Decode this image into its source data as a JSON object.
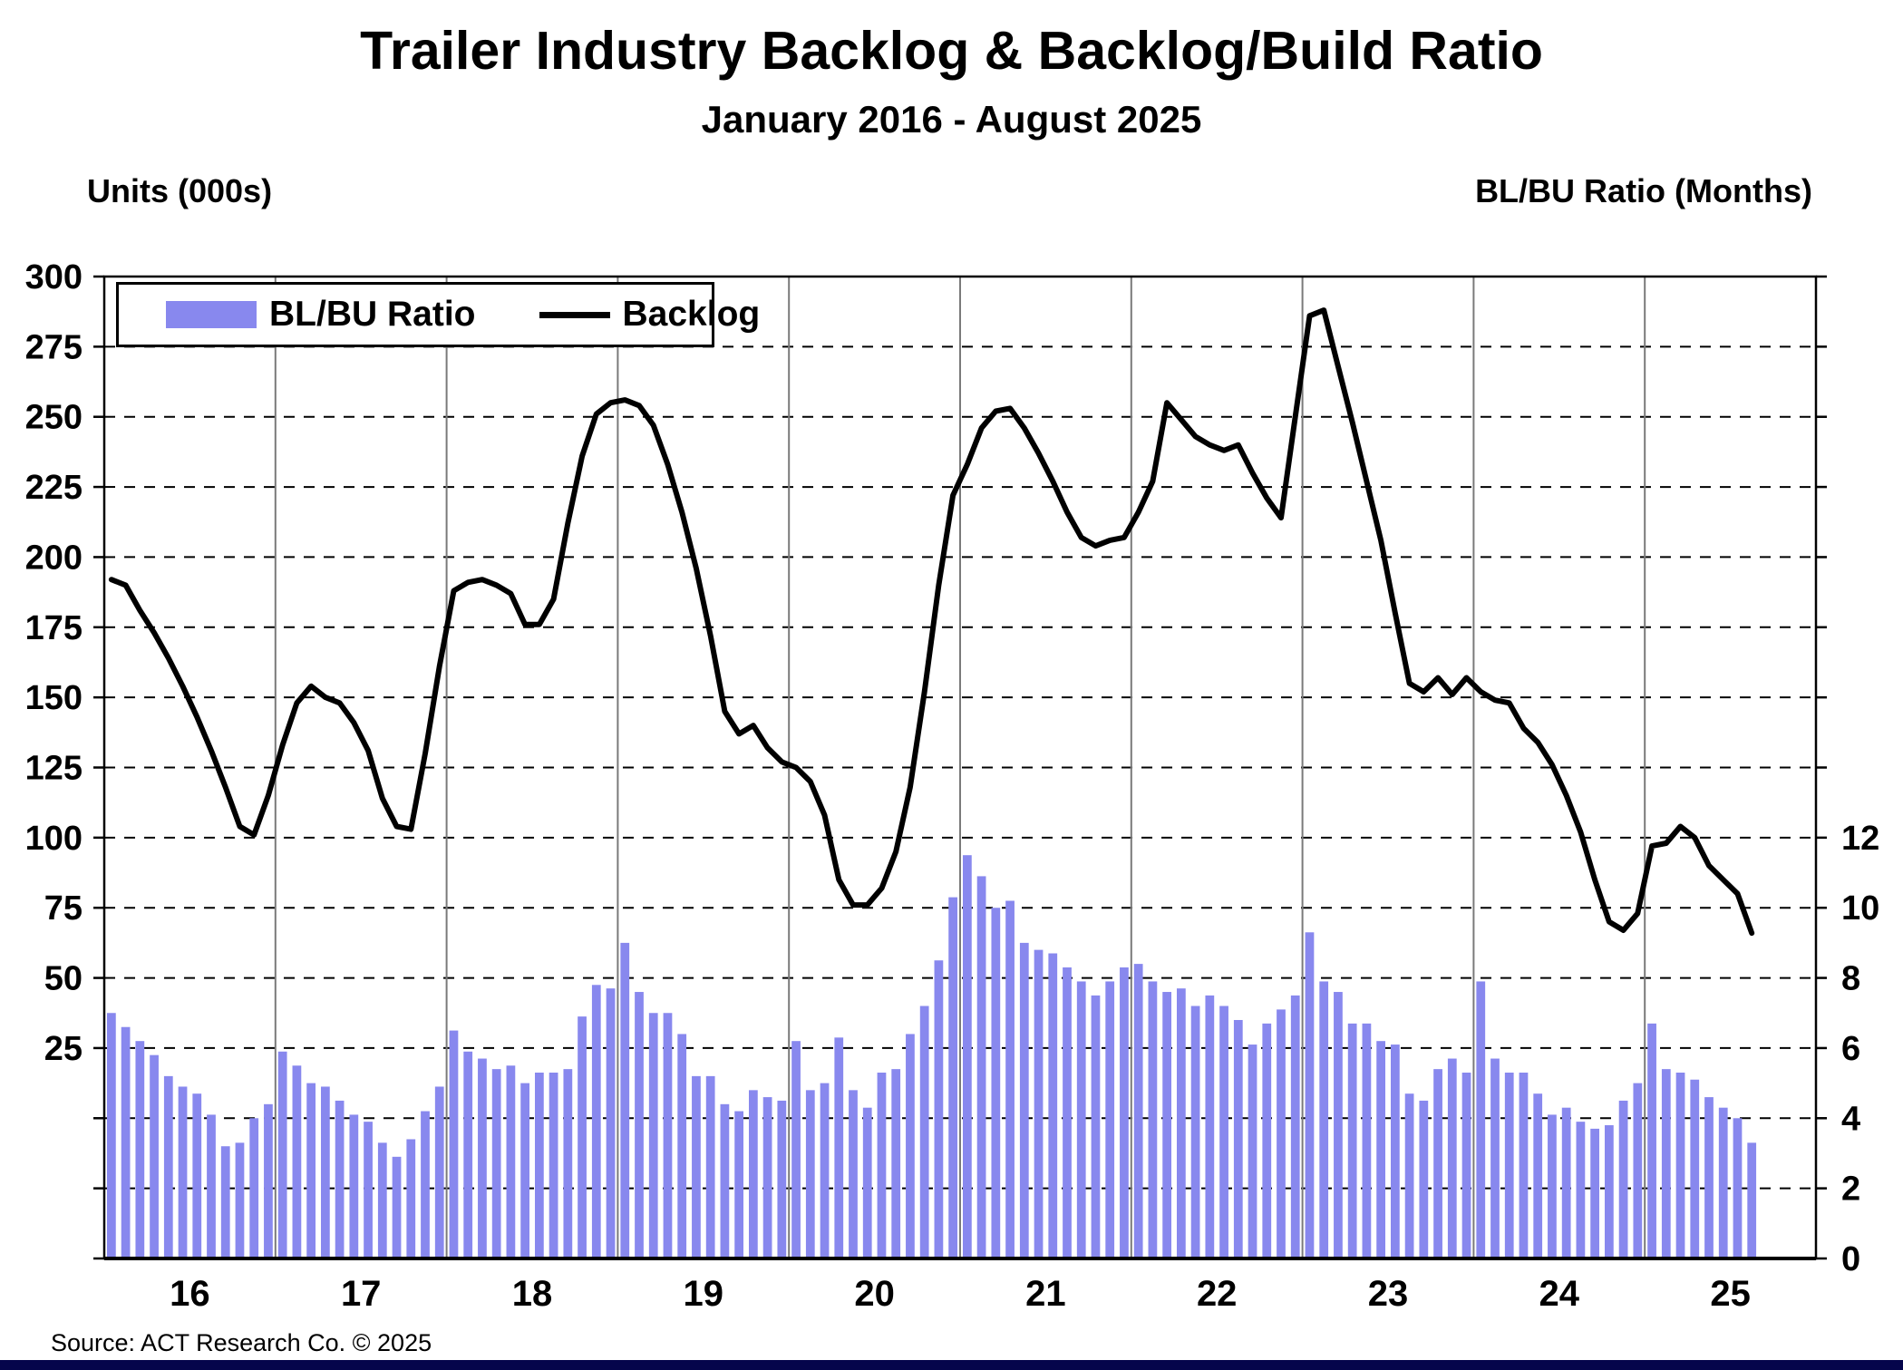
{
  "page": {
    "title": "Trailer Industry Backlog & Backlog/Build Ratio",
    "subtitle": "January 2016 - August 2025"
  },
  "axes_titles": {
    "left": "Units (000s)",
    "right": "BL/BU Ratio (Months)"
  },
  "legend": {
    "ratio_label": "BL/BU Ratio",
    "backlog_label": "Backlog"
  },
  "source": "Source: ACT Research Co. © 2025",
  "colors": {
    "bar": "#8888EE",
    "line": "#000000",
    "frame": "#000000",
    "gridline": "#000000",
    "year_line": "#7a7a7a",
    "bottom_border": "#05054B"
  },
  "chart_data": {
    "type": "combo (bar + line)",
    "title": "Trailer Industry Backlog & Backlog/Build Ratio",
    "subtitle": "January 2016 - August 2025",
    "x": {
      "start": "2016-01",
      "end_of_data": "2025-08",
      "months_plotted": 116,
      "axis_slots": 120,
      "year_labels": [
        "16",
        "17",
        "18",
        "19",
        "20",
        "21",
        "22",
        "23",
        "24",
        "25"
      ]
    },
    "left_axis": {
      "title": "Units (000s)",
      "plot_min": -50,
      "plot_max": 300,
      "tick_step": 25,
      "tick_labels": [
        300,
        275,
        250,
        225,
        200,
        175,
        150,
        125,
        100,
        75,
        50,
        25
      ],
      "grid": "dashed horizontal every 25 units"
    },
    "right_axis": {
      "title": "BL/BU Ratio (Months)",
      "tick_labels": [
        12,
        10,
        8,
        6,
        4,
        2,
        0
      ],
      "alignment": "ratio r maps to left-axis value (12.5*r - 50); 0 at plot bottom",
      "legend_position": "top-left inside plot"
    },
    "series": [
      {
        "name": "BL/BU Ratio",
        "type": "bar",
        "axis": "right",
        "unit": "months",
        "color": "#8888EE",
        "values": [
          7.0,
          6.6,
          6.2,
          5.8,
          5.2,
          4.9,
          4.7,
          4.1,
          3.2,
          3.3,
          4.0,
          4.4,
          5.9,
          5.5,
          5.0,
          4.9,
          4.5,
          4.1,
          3.9,
          3.3,
          2.9,
          3.4,
          4.2,
          4.9,
          6.5,
          5.9,
          5.7,
          5.4,
          5.5,
          5.0,
          5.3,
          5.3,
          5.4,
          6.9,
          7.8,
          7.7,
          9.0,
          7.6,
          7.0,
          7.0,
          6.4,
          5.2,
          5.2,
          4.4,
          4.2,
          4.8,
          4.6,
          4.5,
          6.2,
          4.8,
          5.0,
          6.3,
          4.8,
          4.3,
          5.3,
          5.4,
          6.4,
          7.2,
          8.5,
          10.3,
          11.5,
          10.9,
          10.0,
          10.2,
          9.0,
          8.8,
          8.7,
          8.3,
          7.9,
          7.5,
          7.9,
          8.3,
          8.4,
          7.9,
          7.6,
          7.7,
          7.2,
          7.5,
          7.2,
          6.8,
          6.1,
          6.7,
          7.1,
          7.5,
          9.3,
          7.9,
          7.6,
          6.7,
          6.7,
          6.2,
          6.1,
          4.7,
          4.5,
          5.4,
          5.7,
          5.3,
          7.9,
          5.7,
          5.3,
          5.3,
          4.7,
          4.1,
          4.3,
          3.9,
          3.7,
          3.8,
          4.5,
          5.0,
          6.7,
          5.4,
          5.3,
          5.1,
          4.6,
          4.3,
          4.0,
          3.3
        ]
      },
      {
        "name": "Backlog",
        "type": "line",
        "axis": "left",
        "unit": "thousand units",
        "color": "#000000",
        "values": [
          192,
          190,
          181,
          173,
          164,
          154,
          143,
          131,
          118,
          104,
          101,
          115,
          133,
          148,
          154,
          150,
          148,
          141,
          131,
          114,
          104,
          103,
          130,
          161,
          188,
          191,
          192,
          190,
          187,
          176,
          176,
          185,
          212,
          236,
          251,
          255,
          256,
          254,
          247,
          233,
          216,
          196,
          172,
          145,
          137,
          140,
          132,
          127,
          125,
          120,
          108,
          85,
          76,
          76,
          82,
          95,
          118,
          152,
          190,
          222,
          233,
          246,
          252,
          253,
          246,
          237,
          227,
          216,
          207,
          204,
          206,
          207,
          216,
          227,
          255,
          249,
          243,
          240,
          238,
          240,
          230,
          221,
          214,
          250,
          286,
          288,
          268,
          248,
          227,
          206,
          180,
          155,
          152,
          157,
          151,
          157,
          152,
          149,
          148,
          139,
          134,
          126,
          115,
          102,
          85,
          70,
          67,
          73,
          97,
          98,
          104,
          100,
          90,
          85,
          80,
          66
        ]
      }
    ]
  }
}
